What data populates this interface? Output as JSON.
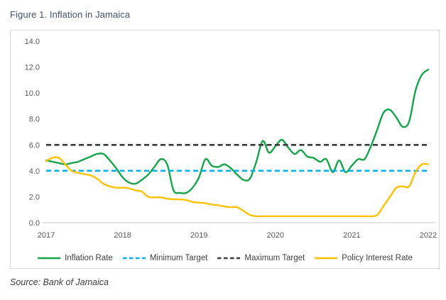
{
  "figure": {
    "title": "Figure 1. Inflation in Jamaica",
    "source": "Source: Bank of Jamaica"
  },
  "colors": {
    "title_text": "#44546A",
    "axis_text": "#595959",
    "axis_line": "#C9C9C9",
    "box_border": "#D8D8D8",
    "inflation_green": "#16A34A",
    "min_target_blue": "#00B0F0",
    "max_target_black": "#3B3B3B",
    "policy_rate_yellow": "#FFC000"
  },
  "chart_data": {
    "type": "line",
    "title": "Figure 1. Inflation in Jamaica",
    "xlabel": "",
    "ylabel": "",
    "x_unit": "monthly, Jan 2017 - Jan 2022",
    "x_tick_labels": [
      "2017",
      "2018",
      "2019",
      "2020",
      "2021",
      "2022"
    ],
    "y_tick_labels": [
      "0.0",
      "2.0",
      "4.0",
      "6.0",
      "8.0",
      "10.0",
      "12.0",
      "14.0"
    ],
    "ylim": [
      0,
      14
    ],
    "grid": false,
    "legend_position": "bottom",
    "series": [
      {
        "name": "Inflation Rate",
        "style": "solid",
        "color": "#16A34A",
        "values": [
          4.8,
          4.7,
          4.6,
          4.5,
          4.6,
          4.7,
          4.9,
          5.1,
          5.3,
          5.3,
          4.8,
          4.2,
          3.5,
          3.1,
          3.0,
          3.3,
          3.7,
          4.3,
          4.9,
          4.5,
          2.5,
          2.3,
          2.3,
          2.7,
          3.5,
          4.9,
          4.4,
          4.3,
          4.5,
          4.2,
          3.7,
          3.3,
          3.4,
          4.7,
          6.3,
          5.4,
          5.9,
          6.4,
          5.8,
          5.3,
          5.6,
          5.1,
          5.0,
          4.7,
          4.9,
          3.9,
          4.8,
          3.9,
          4.4,
          4.9,
          4.9,
          5.9,
          7.2,
          8.5,
          8.7,
          8.1,
          7.4,
          7.8,
          10.2,
          11.4,
          11.8
        ]
      },
      {
        "name": "Minimum Target",
        "style": "dashed",
        "color": "#00B0F0",
        "constant": 4.0
      },
      {
        "name": "Maximum Target",
        "style": "dashed",
        "color": "#3B3B3B",
        "constant": 6.0
      },
      {
        "name": "Policy Interest Rate",
        "style": "solid",
        "color": "#FFC000",
        "values": [
          4.75,
          5.0,
          5.0,
          4.5,
          4.0,
          3.85,
          3.75,
          3.65,
          3.4,
          3.0,
          2.8,
          2.7,
          2.7,
          2.65,
          2.5,
          2.4,
          2.0,
          1.95,
          1.95,
          1.85,
          1.8,
          1.8,
          1.75,
          1.6,
          1.55,
          1.5,
          1.4,
          1.35,
          1.25,
          1.2,
          1.2,
          0.9,
          0.6,
          0.5,
          0.5,
          0.5,
          0.5,
          0.5,
          0.5,
          0.5,
          0.5,
          0.5,
          0.5,
          0.5,
          0.5,
          0.5,
          0.5,
          0.5,
          0.5,
          0.5,
          0.5,
          0.5,
          0.6,
          1.3,
          2.0,
          2.7,
          2.8,
          2.8,
          3.9,
          4.5,
          4.5
        ]
      }
    ]
  }
}
